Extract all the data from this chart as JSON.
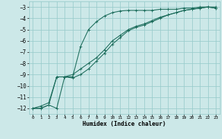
{
  "xlabel": "Humidex (Indice chaleur)",
  "ylabel": "",
  "bg_color": "#cce8e8",
  "line_color": "#1a6b5a",
  "grid_color": "#99cccc",
  "xlim": [
    -0.5,
    23.5
  ],
  "ylim": [
    -12.5,
    -2.5
  ],
  "yticks": [
    -3,
    -4,
    -5,
    -6,
    -7,
    -8,
    -9,
    -10,
    -11,
    -12
  ],
  "xticks": [
    0,
    1,
    2,
    3,
    4,
    5,
    6,
    7,
    8,
    9,
    10,
    11,
    12,
    13,
    14,
    15,
    16,
    17,
    18,
    19,
    20,
    21,
    22,
    23
  ],
  "curve1_x": [
    0,
    1,
    2,
    3,
    4,
    5,
    6,
    7,
    8,
    9,
    10,
    11,
    12,
    13,
    14,
    15,
    16,
    17,
    18,
    19,
    20,
    21,
    22,
    23
  ],
  "curve1_y": [
    -12.0,
    -12.0,
    -11.7,
    -12.0,
    -9.2,
    -9.2,
    -6.5,
    -5.0,
    -4.3,
    -3.8,
    -3.5,
    -3.35,
    -3.3,
    -3.3,
    -3.3,
    -3.3,
    -3.2,
    -3.2,
    -3.2,
    -3.1,
    -3.1,
    -3.0,
    -3.0,
    -3.0
  ],
  "curve2_x": [
    0,
    1,
    2,
    3,
    4,
    5,
    6,
    7,
    8,
    9,
    10,
    11,
    12,
    13,
    14,
    15,
    16,
    17,
    18,
    19,
    20,
    21,
    22,
    23
  ],
  "curve2_y": [
    -12.0,
    -12.0,
    -11.7,
    -9.2,
    -9.2,
    -9.3,
    -9.0,
    -8.5,
    -7.8,
    -7.1,
    -6.3,
    -5.7,
    -5.1,
    -4.8,
    -4.6,
    -4.3,
    -4.0,
    -3.7,
    -3.5,
    -3.3,
    -3.2,
    -3.1,
    -3.0,
    -3.1
  ],
  "curve3_x": [
    0,
    1,
    2,
    3,
    4,
    5,
    6,
    7,
    8,
    9,
    10,
    11,
    12,
    13,
    14,
    15,
    16,
    17,
    18,
    19,
    20,
    21,
    22,
    23
  ],
  "curve3_y": [
    -12.0,
    -11.8,
    -11.5,
    -9.2,
    -9.2,
    -9.0,
    -8.5,
    -8.0,
    -7.5,
    -6.8,
    -6.0,
    -5.5,
    -5.0,
    -4.7,
    -4.5,
    -4.2,
    -3.9,
    -3.7,
    -3.5,
    -3.3,
    -3.2,
    -3.1,
    -3.0,
    -3.1
  ]
}
